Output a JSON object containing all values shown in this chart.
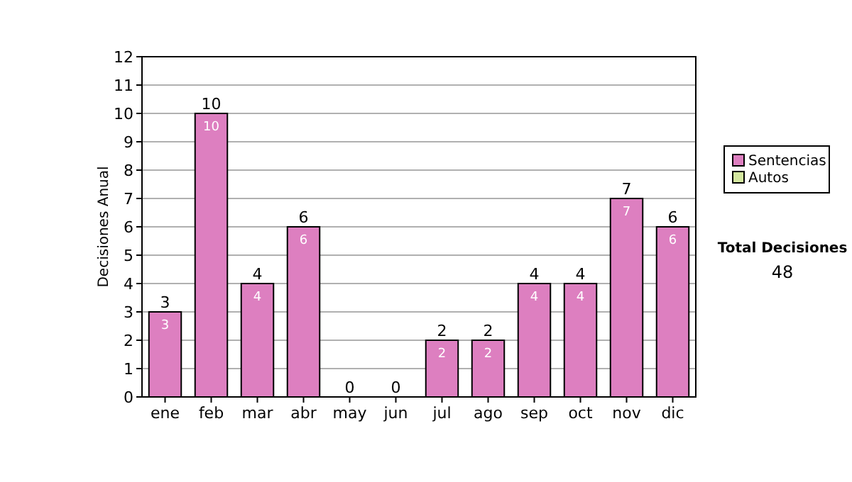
{
  "chart_data": {
    "type": "bar",
    "ylabel": "Decisiones Anual",
    "categories": [
      "ene",
      "feb",
      "mar",
      "abr",
      "may",
      "jun",
      "jul",
      "ago",
      "sep",
      "oct",
      "nov",
      "dic"
    ],
    "series": [
      {
        "name": "Sentencias",
        "color": "#dd7fc0",
        "values": [
          3,
          10,
          4,
          6,
          0,
          0,
          2,
          2,
          4,
          4,
          7,
          6
        ],
        "value_labels": [
          "3",
          "10",
          "4",
          "6",
          null,
          null,
          "2",
          "2",
          "4",
          "4",
          "7",
          "6"
        ]
      },
      {
        "name": "Autos",
        "color": "#d4e8a0",
        "values": [
          0,
          0,
          0,
          0,
          0,
          0,
          0,
          0,
          0,
          0,
          0,
          0
        ]
      }
    ],
    "stacked": true,
    "totals": [
      "3",
      "10",
      "4",
      "6",
      "0",
      "0",
      "2",
      "2",
      "4",
      "4",
      "7",
      "6"
    ],
    "ylim": [
      0,
      12
    ],
    "yticks": [
      0,
      1,
      2,
      3,
      4,
      5,
      6,
      7,
      8,
      9,
      10,
      11,
      12
    ],
    "grid": "y",
    "legend": "right",
    "annotations": [
      "Total Decisiones",
      "48"
    ]
  }
}
